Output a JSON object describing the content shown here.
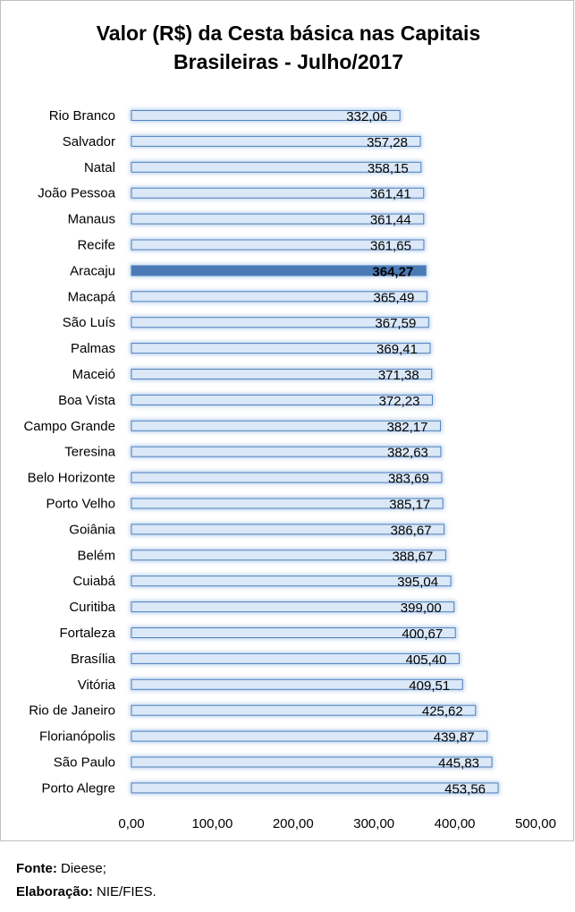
{
  "chart_data": {
    "type": "bar",
    "orientation": "horizontal",
    "title_lines": [
      "Valor (R$) da Cesta básica nas Capitais",
      "Brasileiras -  Julho/2017"
    ],
    "categories": [
      "Rio Branco",
      "Salvador",
      "Natal",
      "João Pessoa",
      "Manaus",
      "Recife",
      "Aracaju",
      "Macapá",
      "São Luís",
      "Palmas",
      "Maceió",
      "Boa Vista",
      "Campo Grande",
      "Teresina",
      "Belo Horizonte",
      "Porto Velho",
      "Goiânia",
      "Belém",
      "Cuiabá",
      "Curitiba",
      "Fortaleza",
      "Brasília",
      "Vitória",
      "Rio de Janeiro",
      "Florianópolis",
      "São Paulo",
      "Porto Alegre"
    ],
    "values": [
      332.06,
      357.28,
      358.15,
      361.41,
      361.44,
      361.65,
      364.27,
      365.49,
      367.59,
      369.41,
      371.38,
      372.23,
      382.17,
      382.63,
      383.69,
      385.17,
      386.67,
      388.67,
      395.04,
      399.0,
      400.67,
      405.4,
      409.51,
      425.62,
      439.87,
      445.83,
      453.56
    ],
    "value_labels": [
      "332,06",
      "357,28",
      "358,15",
      "361,41",
      "361,44",
      "361,65",
      "364,27",
      "365,49",
      "367,59",
      "369,41",
      "371,38",
      "372,23",
      "382,17",
      "382,63",
      "383,69",
      "385,17",
      "386,67",
      "388,67",
      "395,04",
      "399,00",
      "400,67",
      "405,40",
      "409,51",
      "425,62",
      "439,87",
      "445,83",
      "453,56"
    ],
    "highlight": "Aracaju",
    "xlim": [
      0,
      500
    ],
    "xticks": [
      0,
      100,
      200,
      300,
      400,
      500
    ],
    "xtick_labels": [
      "0,00",
      "100,00",
      "200,00",
      "300,00",
      "400,00",
      "500,00"
    ],
    "xlabel": "",
    "ylabel": "",
    "grid": false,
    "colors": {
      "bar_fill": "#dbe8f7",
      "bar_stroke": "#4f81bd",
      "bar_glow": "#a9c6ea",
      "highlight_fill": "#4a7ab5"
    }
  },
  "footer": {
    "source_label": "Fonte:",
    "source_value": " Dieese;",
    "credit_label": "Elaboração:",
    "credit_value": " NIE/FIES."
  }
}
